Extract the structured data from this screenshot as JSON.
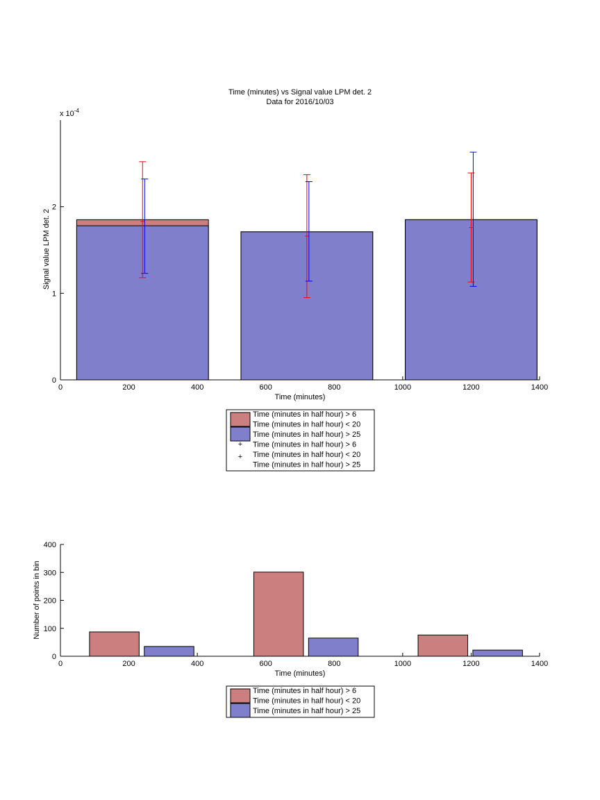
{
  "chart_data": [
    {
      "type": "bar",
      "title": "Time (minutes) vs Signal value LPM det. 2",
      "subtitle": "Data for 2016/10/03",
      "xlabel": "Time (minutes)",
      "ylabel": "Signal value LPM det. 2",
      "y_exponent_label": "x 10",
      "y_exponent_power": "-4",
      "xlim": [
        0,
        1400
      ],
      "ylim": [
        0,
        3
      ],
      "x_ticks": [
        0,
        200,
        400,
        600,
        800,
        1000,
        1200,
        1400
      ],
      "y_ticks": [
        0,
        1,
        2
      ],
      "grid": false,
      "legend_position": "below",
      "legend_entries": [
        "Time (minutes in half hour) > 6",
        "Time (minutes in half hour) < 20",
        "Time (minutes in half hour) > 25",
        "Time (minutes in half hour) > 6",
        "Time (minutes in half hour) < 20",
        "Time (minutes in half hour) > 25"
      ],
      "x": [
        240,
        720,
        1200
      ],
      "bar_width": 385,
      "series": [
        {
          "color": "#cc7f7f",
          "values": [
            1.85,
            1.71,
            1.85
          ],
          "err_low": [
            1.18,
            0.95,
            1.13
          ],
          "err_high": [
            2.52,
            2.37,
            2.39
          ],
          "err_center": [
            1.83,
            1.66,
            1.76
          ],
          "err_color": "#ff0000"
        },
        {
          "color": "#7f7fcc",
          "values": [
            1.78,
            1.71,
            1.85
          ],
          "err_low": [
            1.23,
            1.14,
            1.08
          ],
          "err_high": [
            2.32,
            2.29,
            2.63
          ],
          "err_color": "#0000ff"
        }
      ]
    },
    {
      "type": "bar",
      "xlabel": "Time (minutes)",
      "ylabel": "Number of points in bin",
      "xlim": [
        0,
        1400
      ],
      "ylim": [
        0,
        400
      ],
      "x_ticks": [
        0,
        200,
        400,
        600,
        800,
        1000,
        1200,
        1400
      ],
      "y_ticks": [
        0,
        100,
        200,
        300,
        400
      ],
      "grid": false,
      "legend_position": "below",
      "legend_entries": [
        "Time (minutes in half hour) > 6",
        "Time (minutes in half hour) < 20",
        "Time (minutes in half hour) > 25"
      ],
      "categories_x": [
        240,
        720,
        1200
      ],
      "series": [
        {
          "color": "#cc7f7f",
          "values": [
            87,
            301,
            76
          ],
          "x_left": [
            85,
            565,
            1045
          ],
          "x_right": [
            230,
            710,
            1190
          ]
        },
        {
          "color": "#7f7fcc",
          "values": [
            35,
            65,
            22
          ],
          "x_left": [
            245,
            725,
            1205
          ],
          "x_right": [
            390,
            870,
            1350
          ]
        }
      ]
    }
  ]
}
